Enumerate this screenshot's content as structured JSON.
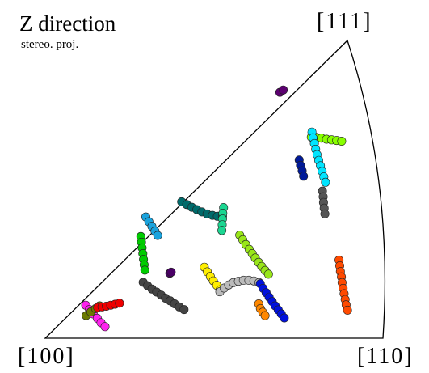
{
  "chart_data": {
    "type": "scatter",
    "title": "Z direction",
    "subtitle": "stereo. proj.",
    "corner_labels": {
      "origin": "[100]",
      "right": "[110]",
      "top": "[111]"
    },
    "coordinate_note": "points given as (u, v) in triangle-local units: [100]=(0,0), [110]=(1,0), [111]=(0.895,0.884)",
    "grid": false,
    "legend": "none",
    "series": [
      {
        "color": "#5c0070",
        "points": [
          [
            0.695,
            0.73
          ],
          [
            0.705,
            0.737
          ]
        ]
      },
      {
        "color": "#88ff00",
        "points": [
          [
            0.788,
            0.597
          ],
          [
            0.803,
            0.596
          ],
          [
            0.818,
            0.594
          ],
          [
            0.833,
            0.591
          ],
          [
            0.848,
            0.589
          ],
          [
            0.863,
            0.587
          ],
          [
            0.878,
            0.585
          ]
        ]
      },
      {
        "color": "#00e5ff",
        "points": [
          [
            0.79,
            0.612
          ],
          [
            0.793,
            0.595
          ],
          [
            0.797,
            0.578
          ],
          [
            0.801,
            0.561
          ],
          [
            0.805,
            0.545
          ],
          [
            0.81,
            0.528
          ],
          [
            0.815,
            0.512
          ],
          [
            0.82,
            0.495
          ],
          [
            0.825,
            0.479
          ],
          [
            0.83,
            0.463
          ]
        ]
      },
      {
        "color": "#001a99",
        "points": [
          [
            0.752,
            0.529
          ],
          [
            0.756,
            0.513
          ],
          [
            0.761,
            0.497
          ],
          [
            0.765,
            0.481
          ]
        ]
      },
      {
        "color": "#555555",
        "points": [
          [
            0.821,
            0.437
          ],
          [
            0.823,
            0.42
          ],
          [
            0.824,
            0.403
          ],
          [
            0.826,
            0.386
          ],
          [
            0.828,
            0.369
          ]
        ]
      },
      {
        "color": "#006b6b",
        "points": [
          [
            0.404,
            0.405
          ],
          [
            0.419,
            0.397
          ],
          [
            0.434,
            0.389
          ],
          [
            0.449,
            0.382
          ],
          [
            0.464,
            0.375
          ],
          [
            0.479,
            0.369
          ],
          [
            0.495,
            0.365
          ],
          [
            0.51,
            0.362
          ],
          [
            0.525,
            0.362
          ]
        ]
      },
      {
        "color": "#1bd691",
        "points": [
          [
            0.528,
            0.388
          ],
          [
            0.526,
            0.371
          ],
          [
            0.525,
            0.354
          ],
          [
            0.524,
            0.337
          ],
          [
            0.523,
            0.32
          ]
        ]
      },
      {
        "color": "#1aa3dd",
        "points": [
          [
            0.298,
            0.36
          ],
          [
            0.307,
            0.346
          ],
          [
            0.316,
            0.332
          ],
          [
            0.325,
            0.318
          ],
          [
            0.333,
            0.305
          ]
        ]
      },
      {
        "color": "#00cc00",
        "points": [
          [
            0.283,
            0.302
          ],
          [
            0.285,
            0.285
          ],
          [
            0.287,
            0.268
          ],
          [
            0.289,
            0.251
          ],
          [
            0.291,
            0.234
          ],
          [
            0.293,
            0.218
          ],
          [
            0.295,
            0.202
          ]
        ]
      },
      {
        "color": "#99e61a",
        "points": [
          [
            0.576,
            0.306
          ],
          [
            0.585,
            0.292
          ],
          [
            0.594,
            0.278
          ],
          [
            0.604,
            0.264
          ],
          [
            0.613,
            0.251
          ],
          [
            0.622,
            0.238
          ],
          [
            0.632,
            0.225
          ],
          [
            0.641,
            0.213
          ],
          [
            0.651,
            0.201
          ],
          [
            0.661,
            0.19
          ]
        ]
      },
      {
        "color": "#4a0066",
        "points": [
          [
            0.369,
            0.193
          ],
          [
            0.373,
            0.196
          ]
        ]
      },
      {
        "color": "#ff4a00",
        "points": [
          [
            0.87,
            0.232
          ],
          [
            0.872,
            0.215
          ],
          [
            0.874,
            0.198
          ],
          [
            0.877,
            0.182
          ],
          [
            0.879,
            0.165
          ],
          [
            0.882,
            0.148
          ],
          [
            0.885,
            0.132
          ],
          [
            0.888,
            0.115
          ],
          [
            0.891,
            0.099
          ],
          [
            0.895,
            0.083
          ]
        ]
      },
      {
        "color": "#ffee00",
        "points": [
          [
            0.471,
            0.211
          ],
          [
            0.48,
            0.197
          ],
          [
            0.489,
            0.183
          ],
          [
            0.498,
            0.17
          ],
          [
            0.508,
            0.157
          ],
          [
            0.518,
            0.144
          ]
        ]
      },
      {
        "color": "#bbbbbb",
        "points": [
          [
            0.517,
            0.138
          ],
          [
            0.53,
            0.149
          ],
          [
            0.543,
            0.158
          ],
          [
            0.557,
            0.165
          ],
          [
            0.572,
            0.169
          ],
          [
            0.587,
            0.172
          ],
          [
            0.603,
            0.172
          ],
          [
            0.618,
            0.17
          ],
          [
            0.633,
            0.165
          ]
        ]
      },
      {
        "color": "#0011dd",
        "points": [
          [
            0.637,
            0.162
          ],
          [
            0.645,
            0.148
          ],
          [
            0.654,
            0.135
          ],
          [
            0.663,
            0.122
          ],
          [
            0.672,
            0.109
          ],
          [
            0.681,
            0.096
          ],
          [
            0.69,
            0.084
          ],
          [
            0.699,
            0.072
          ],
          [
            0.708,
            0.06
          ]
        ]
      },
      {
        "color": "#ff8800",
        "points": [
          [
            0.632,
            0.102
          ],
          [
            0.637,
            0.088
          ],
          [
            0.644,
            0.077
          ],
          [
            0.651,
            0.067
          ]
        ]
      },
      {
        "color": "#444444",
        "points": [
          [
            0.29,
            0.166
          ],
          [
            0.303,
            0.156
          ],
          [
            0.316,
            0.146
          ],
          [
            0.33,
            0.137
          ],
          [
            0.343,
            0.128
          ],
          [
            0.356,
            0.119
          ],
          [
            0.37,
            0.111
          ],
          [
            0.383,
            0.102
          ],
          [
            0.397,
            0.093
          ],
          [
            0.411,
            0.085
          ]
        ]
      },
      {
        "color": "#ff22ee",
        "points": [
          [
            0.12,
            0.098
          ],
          [
            0.131,
            0.085
          ],
          [
            0.142,
            0.072
          ],
          [
            0.154,
            0.059
          ],
          [
            0.165,
            0.046
          ],
          [
            0.177,
            0.034
          ]
        ]
      },
      {
        "color": "#6b7a00",
        "points": [
          [
            0.121,
            0.067
          ],
          [
            0.135,
            0.078
          ],
          [
            0.149,
            0.088
          ],
          [
            0.161,
            0.096
          ]
        ]
      },
      {
        "color": "#ee0000",
        "points": [
          [
            0.155,
            0.091
          ],
          [
            0.168,
            0.093
          ],
          [
            0.181,
            0.095
          ],
          [
            0.194,
            0.098
          ],
          [
            0.207,
            0.101
          ],
          [
            0.22,
            0.104
          ]
        ]
      }
    ]
  }
}
